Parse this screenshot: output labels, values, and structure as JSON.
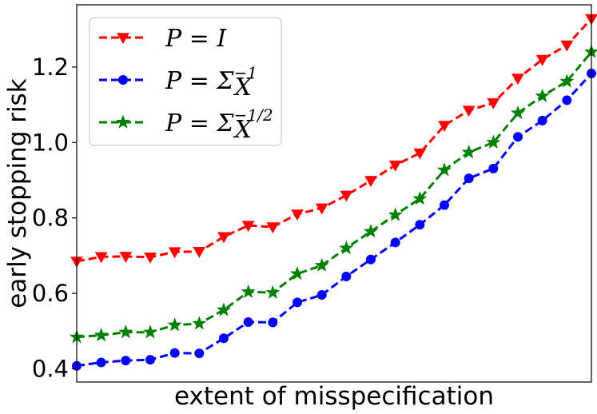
{
  "chart_data": {
    "type": "line",
    "title": "",
    "xlabel": "extent of misspecification",
    "ylabel": "early stopping risk",
    "ylim": [
      0.365,
      1.365
    ],
    "yticks": [
      {
        "value": 0.4,
        "label": "0.4"
      },
      {
        "value": 0.6,
        "label": "0.6"
      },
      {
        "value": 0.8,
        "label": "0.8"
      },
      {
        "value": 1.0,
        "label": "1.0"
      },
      {
        "value": 1.2,
        "label": "1.2"
      }
    ],
    "x_ticks_shown": false,
    "grid": false,
    "legend_position": "top-left",
    "x": [
      1,
      2,
      3,
      4,
      5,
      6,
      7,
      8,
      9,
      10,
      11,
      12,
      13,
      14,
      15,
      16,
      17,
      18,
      19,
      20,
      21,
      22
    ],
    "series": [
      {
        "name": "P = I",
        "legend": {
          "base": "P = I",
          "sup": ""
        },
        "color": "#ff0000",
        "marker": "triangle-down",
        "values": [
          0.685,
          0.697,
          0.698,
          0.696,
          0.71,
          0.711,
          0.75,
          0.78,
          0.776,
          0.81,
          0.826,
          0.86,
          0.899,
          0.94,
          0.972,
          1.045,
          1.085,
          1.105,
          1.17,
          1.22,
          1.258,
          1.328
        ]
      },
      {
        "name": "P = Σ_X^-1",
        "legend": {
          "base": "P = Σ",
          "sub": "X",
          "sup": "−1"
        },
        "color": "#0000ff",
        "marker": "circle",
        "values": [
          0.408,
          0.417,
          0.422,
          0.424,
          0.442,
          0.441,
          0.481,
          0.524,
          0.523,
          0.576,
          0.596,
          0.645,
          0.69,
          0.735,
          0.782,
          0.834,
          0.905,
          0.931,
          1.015,
          1.058,
          1.112,
          1.183
        ]
      },
      {
        "name": "P = Σ_X^-1/2",
        "legend": {
          "base": "P = Σ",
          "sub": "X",
          "sup": "−1/2"
        },
        "color": "#008000",
        "marker": "star",
        "values": [
          0.484,
          0.489,
          0.497,
          0.497,
          0.516,
          0.52,
          0.556,
          0.604,
          0.602,
          0.652,
          0.674,
          0.72,
          0.764,
          0.808,
          0.851,
          0.927,
          0.974,
          1.0,
          1.078,
          1.123,
          1.162,
          1.24
        ]
      }
    ]
  }
}
